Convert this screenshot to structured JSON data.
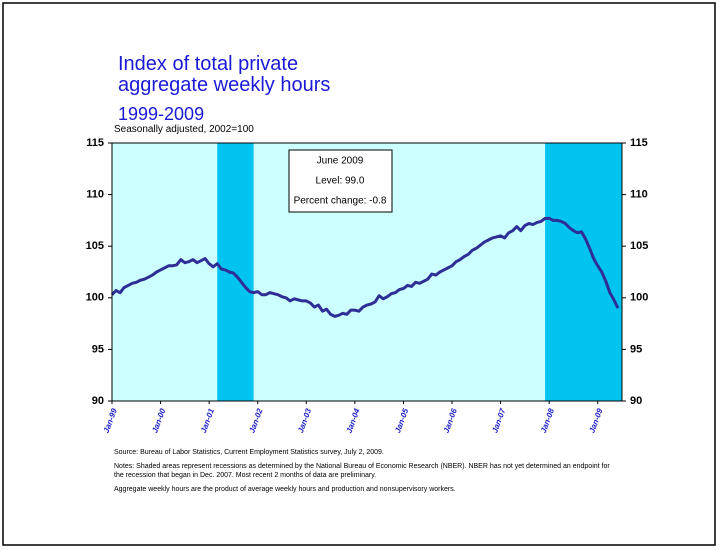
{
  "chart_data": {
    "type": "line",
    "title": "Index of total private aggregate weekly hours",
    "period": "1999-2009",
    "subtitle": "Seasonally adjusted, 2002=100",
    "categories": [
      "Jan-99",
      null,
      null,
      null,
      null,
      null,
      null,
      null,
      null,
      null,
      null,
      null,
      "Jan-00",
      null,
      null,
      null,
      null,
      null,
      null,
      null,
      null,
      null,
      null,
      null,
      "Jan-01",
      null,
      null,
      null,
      null,
      null,
      null,
      null,
      null,
      null,
      null,
      null,
      "Jan-02",
      null,
      null,
      null,
      null,
      null,
      null,
      null,
      null,
      null,
      null,
      null,
      "Jan-03",
      null,
      null,
      null,
      null,
      null,
      null,
      null,
      null,
      null,
      null,
      null,
      "Jan-04",
      null,
      null,
      null,
      null,
      null,
      null,
      null,
      null,
      null,
      null,
      null,
      "Jan-05",
      null,
      null,
      null,
      null,
      null,
      null,
      null,
      null,
      null,
      null,
      null,
      "Jan-06",
      null,
      null,
      null,
      null,
      null,
      null,
      null,
      null,
      null,
      null,
      null,
      "Jan-07",
      null,
      null,
      null,
      null,
      null,
      null,
      null,
      null,
      null,
      null,
      null,
      "Jan-08",
      null,
      null,
      null,
      null,
      null,
      null,
      null,
      null,
      null,
      null,
      null,
      "Jan-09",
      null,
      null,
      null,
      null,
      null
    ],
    "values": [
      100.3,
      100.7,
      100.5,
      101.0,
      101.2,
      101.4,
      101.5,
      101.7,
      101.8,
      102.0,
      102.2,
      102.5,
      102.7,
      102.9,
      103.1,
      103.1,
      103.2,
      103.7,
      103.4,
      103.5,
      103.7,
      103.4,
      103.6,
      103.8,
      103.3,
      103.0,
      103.3,
      102.8,
      102.7,
      102.5,
      102.4,
      102.0,
      101.5,
      101.0,
      100.6,
      100.5,
      100.6,
      100.3,
      100.3,
      100.5,
      100.4,
      100.3,
      100.1,
      100.0,
      99.7,
      99.9,
      99.8,
      99.7,
      99.7,
      99.5,
      99.1,
      99.3,
      98.7,
      98.9,
      98.4,
      98.2,
      98.3,
      98.5,
      98.4,
      98.8,
      98.8,
      98.7,
      99.1,
      99.3,
      99.4,
      99.6,
      100.2,
      99.9,
      100.1,
      100.4,
      100.5,
      100.8,
      100.9,
      101.2,
      101.1,
      101.5,
      101.4,
      101.6,
      101.8,
      102.3,
      102.2,
      102.5,
      102.7,
      102.9,
      103.1,
      103.5,
      103.7,
      104.0,
      104.2,
      104.6,
      104.8,
      105.1,
      105.4,
      105.6,
      105.8,
      105.9,
      106.0,
      105.8,
      106.3,
      106.5,
      106.9,
      106.5,
      107.0,
      107.2,
      107.1,
      107.3,
      107.4,
      107.7,
      107.7,
      107.5,
      107.5,
      107.4,
      107.2,
      106.8,
      106.5,
      106.3,
      106.4,
      105.7,
      104.8,
      103.8,
      103.1,
      102.5,
      101.6,
      100.5,
      99.8,
      99.0
    ],
    "color": "#2e2e96",
    "recessions": [
      {
        "start": 26,
        "end": 34
      },
      {
        "start": 107,
        "end": 125
      }
    ],
    "ylim": [
      90,
      115
    ],
    "yticks": [
      90,
      95,
      100,
      105,
      110,
      115
    ],
    "y2lim": [
      90,
      115
    ],
    "y2ticks": [
      90,
      95,
      100,
      105,
      110,
      115
    ],
    "annotation": {
      "title": "June 2009",
      "lines": [
        "Level: 99.0",
        "Percent change: -0.8"
      ]
    },
    "notes": [
      "Source:  Bureau of Labor Statistics, Current Employment Statistics survey, July 2, 2009.",
      "Notes: Shaded areas represent recessions as determined by the National Bureau of Economic Research (NBER). NBER has not yet determined an endpoint for the recession that began in Dec. 2007. Most recent 2 months of data are preliminary.",
      "Aggregate weekly hours are the product of average weekly hours and production and nonsupervisory workers."
    ]
  }
}
